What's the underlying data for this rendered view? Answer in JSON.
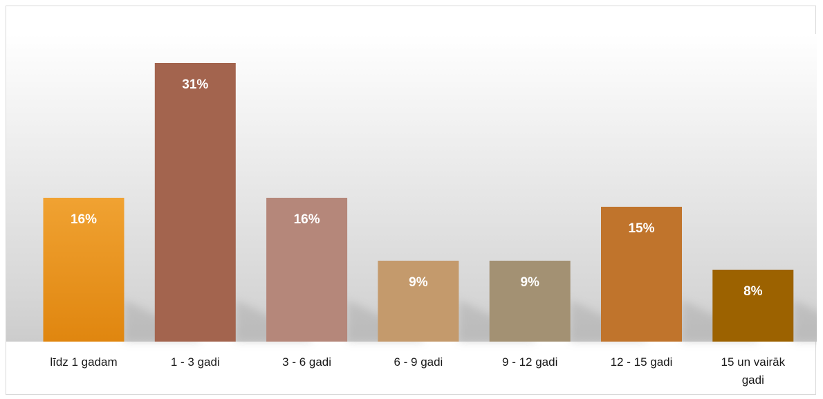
{
  "chart_data": {
    "type": "bar",
    "title": "",
    "xlabel": "",
    "ylabel": "",
    "ylim": [
      0,
      35
    ],
    "grid": false,
    "legend": "none",
    "categories": [
      "līdz 1 gadam",
      "1 - 3 gadi",
      "3 - 6 gadi",
      "6 - 9 gadi",
      "9 - 12 gadi",
      "12 - 15 gadi",
      "15 un vairāk gadi"
    ],
    "values": [
      16,
      31,
      16,
      9,
      9,
      15,
      8
    ],
    "data_labels": [
      "16%",
      "31%",
      "16%",
      "9%",
      "9%",
      "15%",
      "8%"
    ],
    "category_lines": [
      [
        "līdz 1 gadam"
      ],
      [
        "1 - 3 gadi"
      ],
      [
        "3 - 6 gadi"
      ],
      [
        "6 - 9 gadi"
      ],
      [
        "9 - 12 gadi"
      ],
      [
        "12 - 15 gadi"
      ],
      [
        "15 un vairāk",
        "gadi"
      ]
    ],
    "colors": [
      "#e8911f",
      "#a3644e",
      "#b5877a",
      "#c49a6c",
      "#a39173",
      "#c0742c",
      "#9c6200"
    ],
    "background_gradient": [
      "#ffffff",
      "#d4d4d4"
    ]
  }
}
